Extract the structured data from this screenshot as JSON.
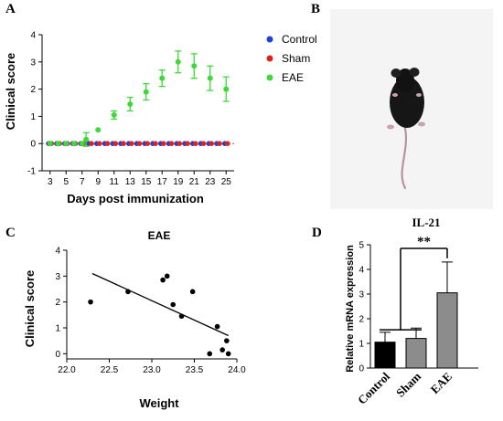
{
  "panel_labels": {
    "a": "A",
    "b": "B",
    "c": "C",
    "d": "D"
  },
  "colors": {
    "control": "#1f3fd6",
    "sham": "#d8261d",
    "eae": "#3fd83a",
    "bar_control": "#000000",
    "bar_sham": "#8c8c8c",
    "bar_eae": "#8c8c8c",
    "mouse_bg": "#f4f4f4"
  },
  "chart_data": [
    {
      "type": "line",
      "panel": "A",
      "xlabel": "Days post immunization",
      "ylabel": "Clinical score",
      "xlim": [
        2,
        26
      ],
      "ylim": [
        -1,
        4
      ],
      "x_ticks": [
        "3",
        "5",
        "7",
        "9",
        "11",
        "13",
        "15",
        "17",
        "19",
        "21",
        "23",
        "25"
      ],
      "y_ticks": [
        "-1",
        "0",
        "1",
        "2",
        "3",
        "4"
      ],
      "series": [
        {
          "name": "Control",
          "x": [
            3,
            4,
            5,
            6,
            7,
            8,
            9,
            10,
            11,
            12,
            13,
            14,
            15,
            16,
            17,
            18,
            19,
            20,
            21,
            22,
            23,
            24,
            25
          ],
          "y": [
            0,
            0,
            0,
            0,
            0,
            0,
            0,
            0,
            0,
            0,
            0,
            0,
            0,
            0,
            0,
            0,
            0,
            0,
            0,
            0,
            0,
            0,
            0
          ]
        },
        {
          "name": "Sham",
          "x": [
            3,
            4,
            5,
            6,
            7,
            8,
            9,
            10,
            11,
            12,
            13,
            14,
            15,
            16,
            17,
            18,
            19,
            20,
            21,
            22,
            23,
            24,
            25
          ],
          "y": [
            0,
            0,
            0,
            0,
            0,
            0,
            0,
            0,
            0,
            0,
            0,
            0,
            0,
            0,
            0,
            0,
            0,
            0,
            0,
            0,
            0,
            0,
            0
          ]
        },
        {
          "name": "EAE",
          "x": [
            3,
            4,
            5,
            6,
            7,
            7.5,
            9,
            11,
            13,
            15,
            17,
            19,
            21,
            23,
            25
          ],
          "y": [
            0,
            0,
            0,
            0,
            0,
            0.15,
            0.5,
            1.05,
            1.45,
            1.9,
            2.4,
            3.0,
            2.85,
            2.4,
            2.0
          ],
          "err": [
            0,
            0,
            0,
            0,
            0,
            0.25,
            0,
            0.15,
            0.25,
            0.3,
            0.3,
            0.4,
            0.45,
            0.45,
            0.45
          ]
        }
      ],
      "legend_position": "right"
    },
    {
      "type": "scatter",
      "panel": "C",
      "title": "EAE",
      "xlabel": "Weight",
      "ylabel": "Clinical score",
      "xlim": [
        22.0,
        24.0
      ],
      "ylim": [
        -0.2,
        4
      ],
      "x_ticks": [
        "22.0",
        "22.5",
        "23.0",
        "23.5",
        "24.0"
      ],
      "y_ticks": [
        "0",
        "1",
        "2",
        "3",
        "4"
      ],
      "points": [
        {
          "x": 22.28,
          "y": 2.0
        },
        {
          "x": 22.72,
          "y": 2.4
        },
        {
          "x": 23.13,
          "y": 2.85
        },
        {
          "x": 23.18,
          "y": 3.0
        },
        {
          "x": 23.25,
          "y": 1.9
        },
        {
          "x": 23.35,
          "y": 1.45
        },
        {
          "x": 23.48,
          "y": 2.4
        },
        {
          "x": 23.68,
          "y": 0.0
        },
        {
          "x": 23.77,
          "y": 1.05
        },
        {
          "x": 23.83,
          "y": 0.15
        },
        {
          "x": 23.88,
          "y": 0.5
        },
        {
          "x": 23.9,
          "y": 0.0
        }
      ],
      "fit_line": {
        "x": [
          22.3,
          23.9
        ],
        "y": [
          3.1,
          0.7
        ]
      }
    },
    {
      "type": "bar",
      "panel": "D",
      "title": "IL-21",
      "ylabel": "Relative mRNA expression",
      "categories": [
        "Control",
        "Sham",
        "EAE"
      ],
      "values": [
        1.05,
        1.2,
        3.05
      ],
      "errors": [
        0.4,
        0.42,
        1.25
      ],
      "ylim": [
        0,
        5
      ],
      "y_ticks": [
        "0",
        "1",
        "2",
        "3",
        "4",
        "5"
      ],
      "significance": "**"
    }
  ]
}
